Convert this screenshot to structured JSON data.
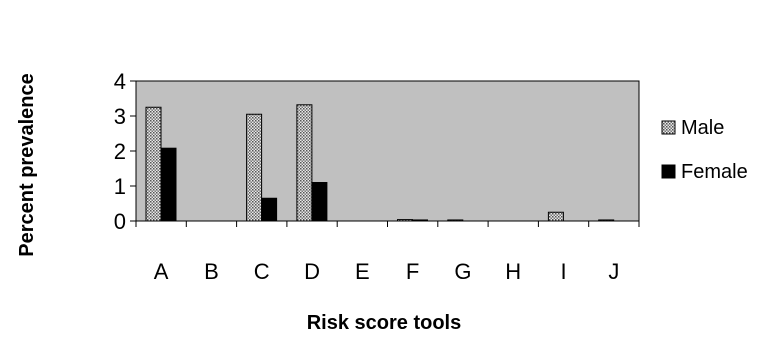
{
  "chart_data": {
    "type": "bar",
    "title": "",
    "xlabel": "Risk score tools",
    "ylabel": "Percent prevalence",
    "categories": [
      "A",
      "B",
      "C",
      "D",
      "E",
      "F",
      "G",
      "H",
      "I",
      "J"
    ],
    "series": [
      {
        "name": "Male",
        "values": [
          3.25,
          0,
          3.05,
          3.32,
          0,
          0.04,
          0.03,
          0,
          0.25,
          0.03
        ],
        "color": "#c8c8c8",
        "pattern": "dotted"
      },
      {
        "name": "Female",
        "values": [
          2.08,
          0,
          0.65,
          1.1,
          0,
          0.03,
          0,
          0,
          0,
          0
        ],
        "color": "#000000",
        "pattern": "solid"
      }
    ],
    "ylim": [
      0,
      4
    ],
    "yticks": [
      0,
      1,
      2,
      3,
      4
    ],
    "plot_background": "#c0c0c0",
    "legend_position": "right",
    "grid": false
  }
}
